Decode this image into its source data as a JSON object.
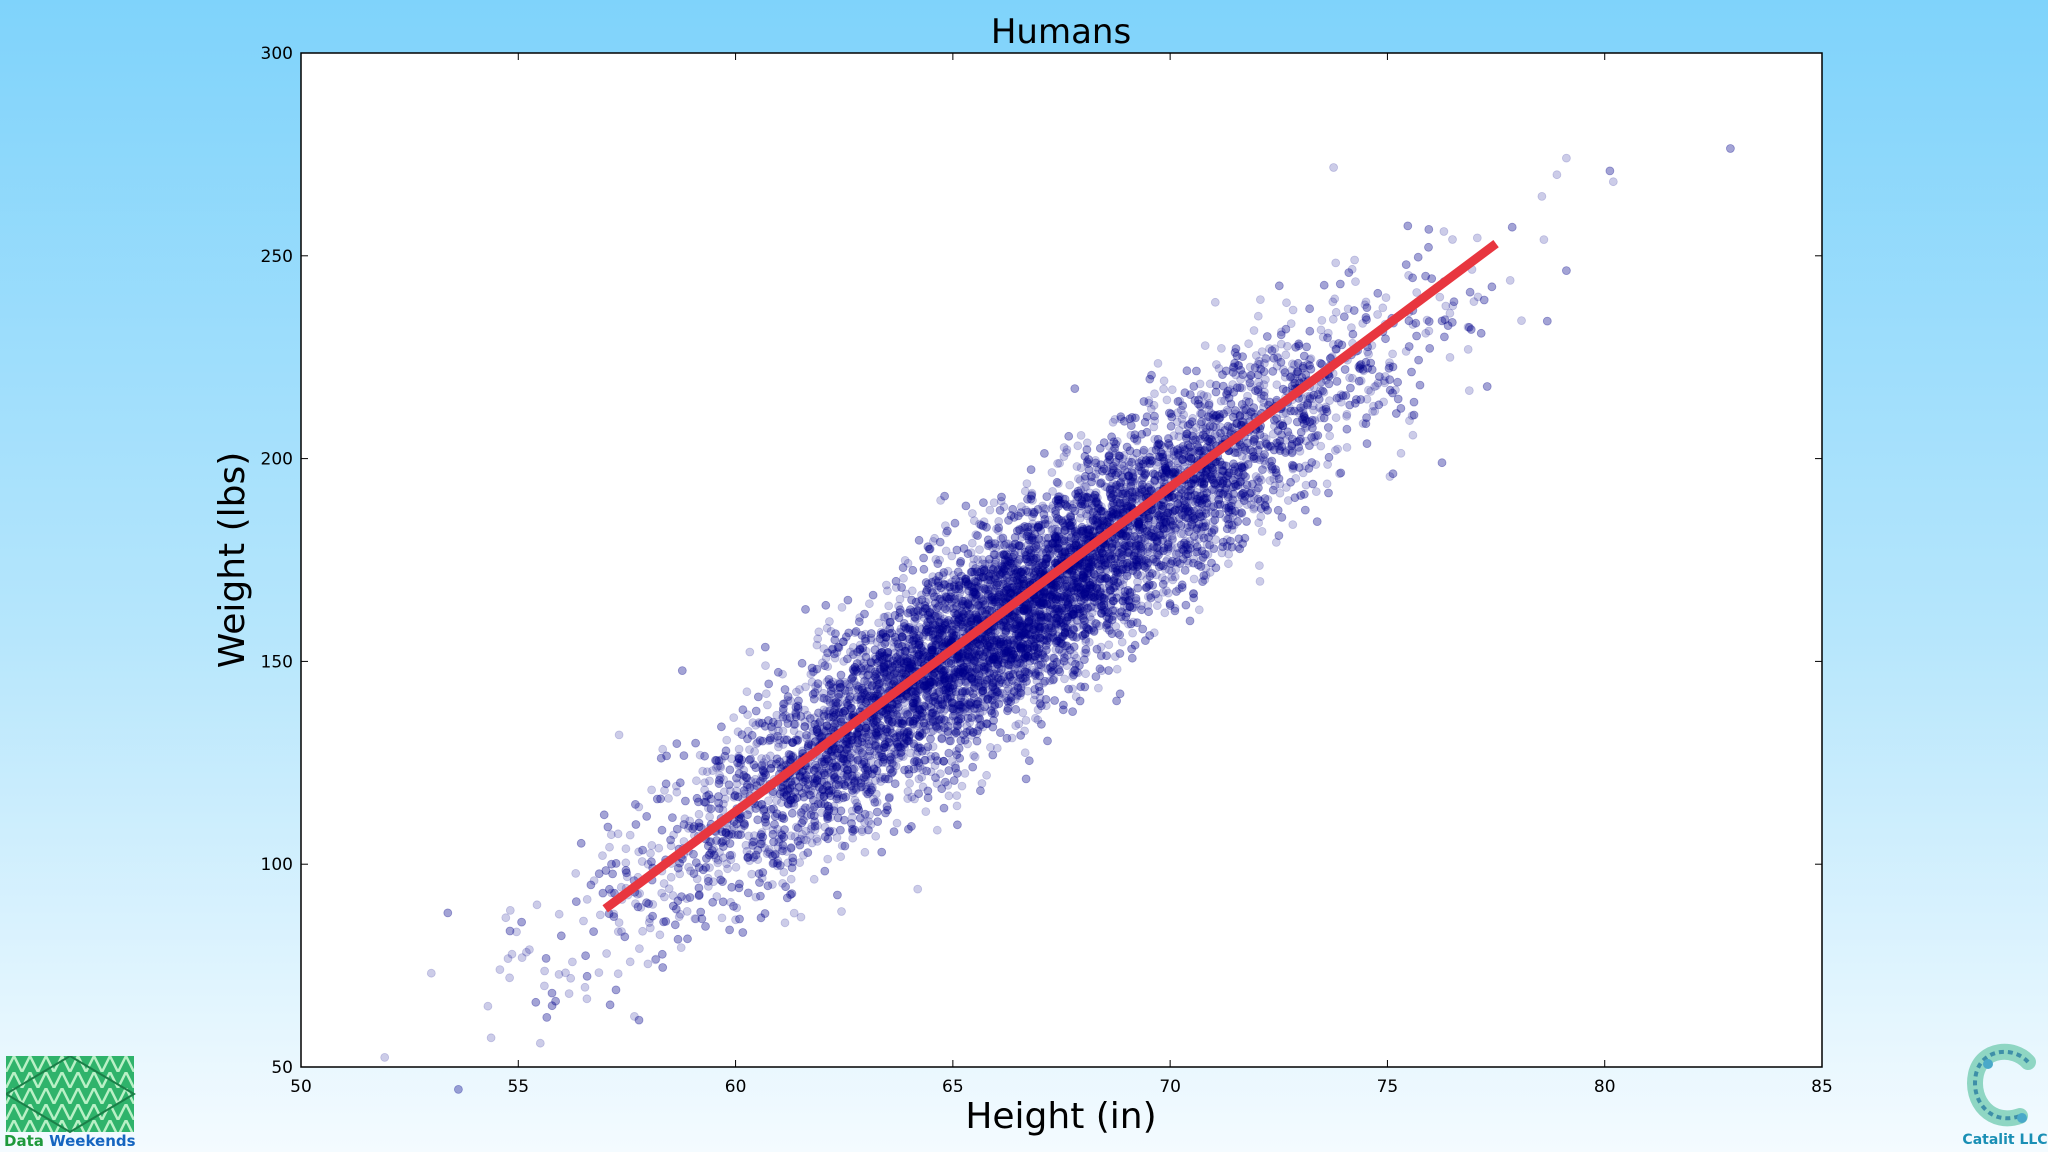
{
  "chart_data": {
    "type": "scatter",
    "title": "Humans",
    "xlabel": "Height (in)",
    "ylabel": "Weight (lbs)",
    "xlim": [
      50,
      85
    ],
    "ylim": [
      50,
      300
    ],
    "xticks": [
      50,
      55,
      60,
      65,
      70,
      75,
      80,
      85
    ],
    "yticks": [
      50,
      100,
      150,
      200,
      250,
      300
    ],
    "grid": false,
    "legend": "none",
    "point_color": "#00008b",
    "point_alpha": 0.2,
    "line_color": "#e8363f",
    "scatter_summary": {
      "n_points": 10000,
      "x_mean": 66.4,
      "x_std": 3.85,
      "y_mean": 161.4,
      "y_std": 32.1,
      "correlation": 0.92
    },
    "extreme_points": [
      {
        "x": 54.3,
        "y": 65
      },
      {
        "x": 54.8,
        "y": 72
      },
      {
        "x": 55.6,
        "y": 70
      },
      {
        "x": 57.3,
        "y": 73
      },
      {
        "x": 78.9,
        "y": 270
      },
      {
        "x": 78.6,
        "y": 254
      },
      {
        "x": 76.3,
        "y": 256
      }
    ],
    "fit_line": {
      "x": [
        57.0,
        77.5
      ],
      "y": [
        89,
        253
      ]
    }
  },
  "logos": {
    "left_label_part1": "Data",
    "left_label_part2": " Weekends",
    "right_label": "Catalit LLC"
  }
}
